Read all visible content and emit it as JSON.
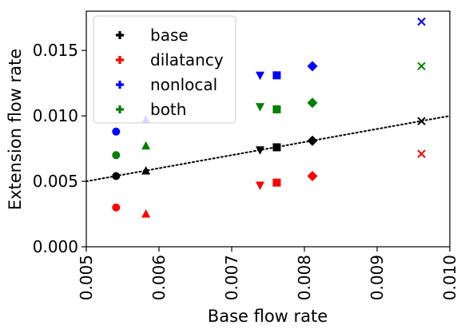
{
  "chart_data": {
    "type": "scatter",
    "title": "",
    "xlabel": "Base flow rate",
    "ylabel": "Extension flow rate",
    "xlim": [
      0.005,
      0.01
    ],
    "ylim": [
      0.0,
      0.018
    ],
    "x_ticks": [
      "0.005",
      "0.006",
      "0.007",
      "0.008",
      "0.009",
      "0.010"
    ],
    "y_ticks": [
      "0.000",
      "0.005",
      "0.010",
      "0.015"
    ],
    "legend_position": "top-left",
    "grid": false,
    "marker_shapes": [
      "circle",
      "triangle-up",
      "triangle-down",
      "square",
      "diamond",
      "x"
    ],
    "series": [
      {
        "name": "base",
        "color": "#000000",
        "legend_marker": "plus",
        "points": [
          {
            "x": 0.00541,
            "y": 0.0054,
            "marker": "circle"
          },
          {
            "x": 0.00582,
            "y": 0.0058,
            "marker": "triangle-up"
          },
          {
            "x": 0.00739,
            "y": 0.0074,
            "marker": "triangle-down"
          },
          {
            "x": 0.00762,
            "y": 0.0076,
            "marker": "square"
          },
          {
            "x": 0.00811,
            "y": 0.0081,
            "marker": "diamond"
          },
          {
            "x": 0.00961,
            "y": 0.0096,
            "marker": "x"
          }
        ]
      },
      {
        "name": "dilatancy",
        "color": "#ff0000",
        "legend_marker": "plus",
        "points": [
          {
            "x": 0.00541,
            "y": 0.003,
            "marker": "circle"
          },
          {
            "x": 0.00582,
            "y": 0.0025,
            "marker": "triangle-up"
          },
          {
            "x": 0.00739,
            "y": 0.0047,
            "marker": "triangle-down"
          },
          {
            "x": 0.00762,
            "y": 0.0049,
            "marker": "square"
          },
          {
            "x": 0.00811,
            "y": 0.0054,
            "marker": "diamond"
          },
          {
            "x": 0.00961,
            "y": 0.0071,
            "marker": "x"
          }
        ]
      },
      {
        "name": "nonlocal",
        "color": "#0000ff",
        "legend_marker": "plus",
        "points": [
          {
            "x": 0.00541,
            "y": 0.0088,
            "marker": "circle"
          },
          {
            "x": 0.00582,
            "y": 0.0097,
            "marker": "triangle-up"
          },
          {
            "x": 0.00739,
            "y": 0.0131,
            "marker": "triangle-down"
          },
          {
            "x": 0.00762,
            "y": 0.0131,
            "marker": "square"
          },
          {
            "x": 0.00811,
            "y": 0.0138,
            "marker": "diamond"
          },
          {
            "x": 0.00961,
            "y": 0.0172,
            "marker": "x"
          }
        ]
      },
      {
        "name": "both",
        "color": "#008000",
        "legend_marker": "plus",
        "points": [
          {
            "x": 0.00541,
            "y": 0.007,
            "marker": "circle"
          },
          {
            "x": 0.00582,
            "y": 0.0077,
            "marker": "triangle-up"
          },
          {
            "x": 0.00739,
            "y": 0.0107,
            "marker": "triangle-down"
          },
          {
            "x": 0.00762,
            "y": 0.0105,
            "marker": "square"
          },
          {
            "x": 0.00811,
            "y": 0.011,
            "marker": "diamond"
          },
          {
            "x": 0.00961,
            "y": 0.0138,
            "marker": "x"
          }
        ]
      }
    ],
    "reference_line": {
      "style": "dotted",
      "color": "#000000",
      "x": [
        0.005,
        0.01
      ],
      "y": [
        0.005,
        0.01
      ]
    }
  }
}
